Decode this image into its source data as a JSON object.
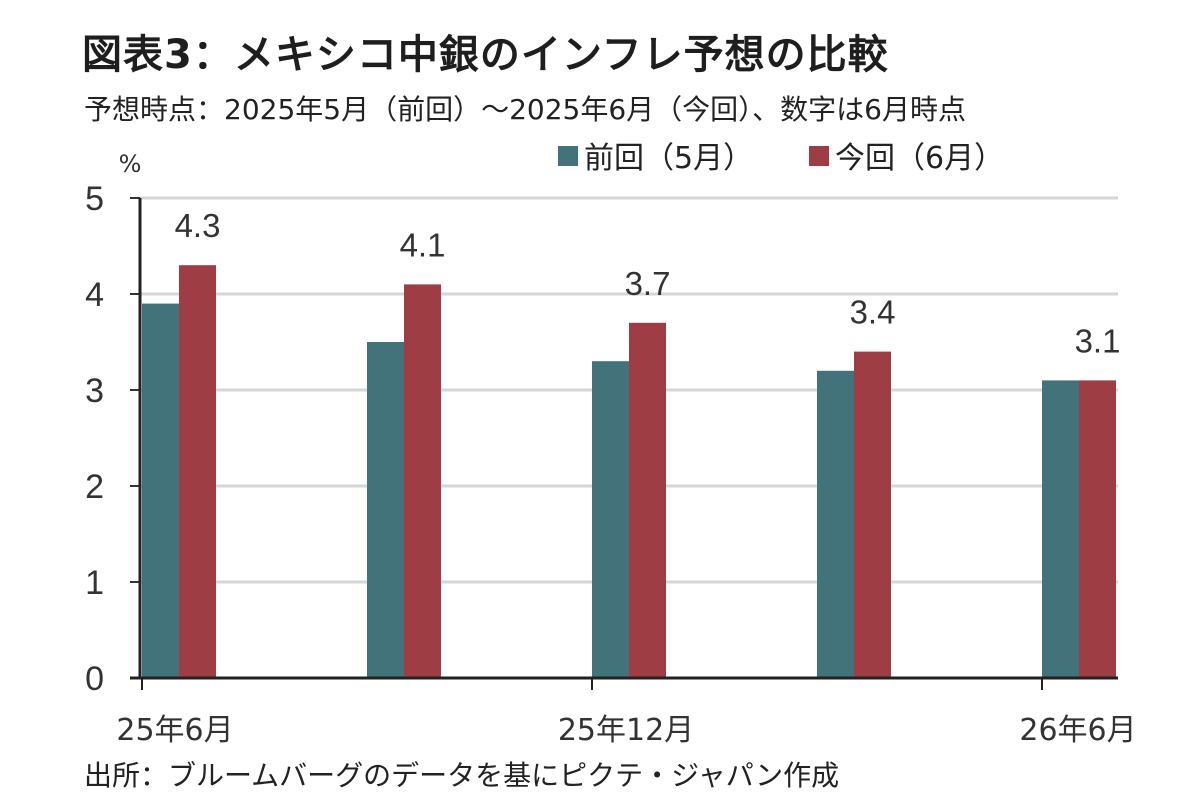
{
  "title": "図表3：メキシコ中銀のインフレ予想の比較",
  "subtitle": "予想時点：2025年5月（前回）～2025年6月（今回）、数字は6月時点",
  "source": "出所：ブルームバーグのデータを基にピクテ・ジャパン作成",
  "chart_data": {
    "type": "bar",
    "unit": "%",
    "categories": [
      "25年6月",
      "",
      "25年12月",
      "",
      "26年6月"
    ],
    "series": [
      {
        "name": "前回（5月）",
        "color": "#43737a",
        "values": [
          3.9,
          3.5,
          3.3,
          3.2,
          3.1
        ]
      },
      {
        "name": "今回（6月）",
        "color": "#9e3d44",
        "values": [
          4.3,
          4.1,
          3.7,
          3.4,
          3.1
        ]
      }
    ],
    "data_labels": [
      "4.3",
      "4.1",
      "3.7",
      "3.4",
      "3.1"
    ],
    "ylim": [
      0,
      5
    ],
    "yticks": [
      "0",
      "1",
      "2",
      "3",
      "4",
      "5"
    ],
    "grid": true,
    "legend_position": "top-right"
  }
}
